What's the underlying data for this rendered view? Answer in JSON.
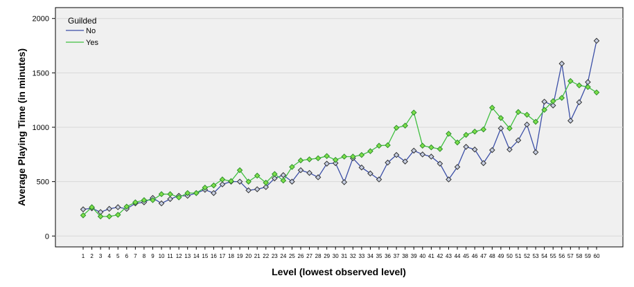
{
  "chart_data": {
    "type": "line",
    "xlabel": "Level (lowest observed level)",
    "ylabel": "Average Playing Time (in minutes)",
    "ylim": [
      -100,
      2100
    ],
    "yticks": [
      0,
      500,
      1000,
      1500,
      2000
    ],
    "x": [
      1,
      2,
      3,
      4,
      5,
      6,
      7,
      8,
      9,
      10,
      11,
      12,
      13,
      14,
      15,
      16,
      17,
      18,
      19,
      20,
      21,
      22,
      23,
      24,
      25,
      26,
      27,
      28,
      29,
      30,
      31,
      32,
      33,
      34,
      35,
      36,
      37,
      38,
      39,
      40,
      41,
      42,
      43,
      44,
      45,
      46,
      47,
      48,
      49,
      50,
      51,
      52,
      53,
      54,
      55,
      56,
      57,
      58,
      59,
      60
    ],
    "grid": "horizontal",
    "legend": {
      "title": "Guilded",
      "position": "top-left"
    },
    "series": [
      {
        "name": "No",
        "color": "#3a4ea6",
        "marker_fill": "#c7cfe2",
        "values": [
          245,
          255,
          220,
          250,
          265,
          250,
          300,
          310,
          350,
          300,
          340,
          370,
          370,
          395,
          425,
          395,
          475,
          500,
          500,
          420,
          430,
          450,
          530,
          560,
          500,
          605,
          580,
          540,
          665,
          670,
          495,
          715,
          630,
          575,
          520,
          675,
          745,
          685,
          785,
          750,
          730,
          665,
          520,
          635,
          820,
          795,
          670,
          790,
          990,
          795,
          880,
          1025,
          770,
          1235,
          1200,
          1585,
          1060,
          1230,
          1415,
          1795
        ]
      },
      {
        "name": "Yes",
        "color": "#3fbf3f",
        "marker_fill": "#7fe04a",
        "values": [
          190,
          265,
          180,
          180,
          195,
          270,
          310,
          330,
          330,
          385,
          385,
          355,
          395,
          395,
          445,
          465,
          520,
          505,
          605,
          500,
          555,
          490,
          570,
          510,
          635,
          695,
          705,
          715,
          735,
          700,
          730,
          730,
          745,
          780,
          830,
          835,
          995,
          1015,
          1135,
          830,
          815,
          800,
          940,
          860,
          930,
          960,
          980,
          1180,
          1085,
          990,
          1140,
          1115,
          1050,
          1160,
          1240,
          1270,
          1425,
          1385,
          1370,
          1320
        ]
      }
    ]
  }
}
